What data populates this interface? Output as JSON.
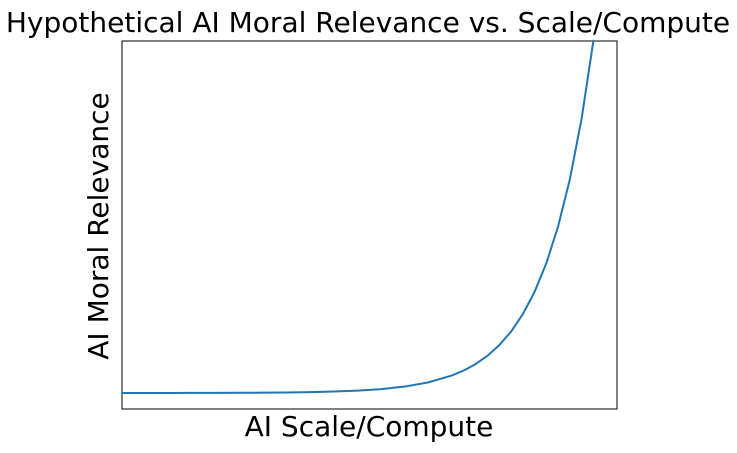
{
  "chart_data": {
    "type": "line",
    "title": "Hypothetical AI Moral Relevance vs. Scale/Compute",
    "xlabel": "AI Scale/Compute",
    "ylabel": "AI Moral Relevance",
    "xlim": [
      0,
      10.5
    ],
    "ylim": [
      -1000,
      22000
    ],
    "xticks": [],
    "yticks": [],
    "grid": false,
    "legend": "none",
    "series": [
      {
        "color": "#1f77b4",
        "x": [
          0,
          0.5,
          1,
          1.5,
          2,
          2.5,
          3,
          3.5,
          4,
          4.5,
          5,
          5.5,
          6,
          6.5,
          7,
          7.25,
          7.5,
          7.75,
          8,
          8.25,
          8.5,
          8.75,
          9,
          9.25,
          9.5,
          9.75,
          10
        ],
        "y": [
          1,
          1.6,
          2.7,
          4.5,
          7.4,
          12.2,
          20.1,
          33.1,
          54.6,
          90,
          148,
          245,
          403,
          665,
          1097,
          1408,
          1808,
          2321,
          2981,
          3827,
          4915,
          6311,
          8103,
          10405,
          13360,
          17154,
          22026
        ]
      }
    ]
  }
}
